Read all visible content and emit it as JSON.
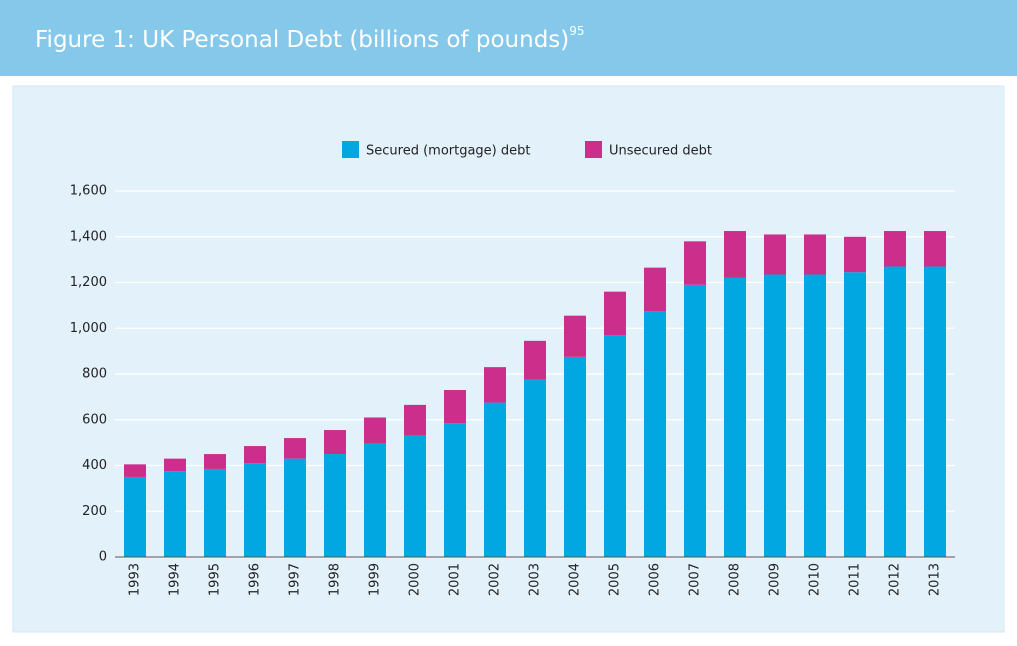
{
  "chart_data": {
    "type": "stacked_bar",
    "title": "Figure 1: UK Personal Debt (billions of pounds)",
    "title_superscript": "95",
    "categories": [
      "1993",
      "1994",
      "1995",
      "1996",
      "1997",
      "1998",
      "1999",
      "2000",
      "2001",
      "2002",
      "2003",
      "2004",
      "2005",
      "2006",
      "2007",
      "2008",
      "2009",
      "2010",
      "2011",
      "2012",
      "2013"
    ],
    "series": [
      {
        "name": "Secured (mortgage) debt",
        "color": "#00a7e1",
        "values": [
          350,
          375,
          385,
          410,
          430,
          450,
          495,
          530,
          585,
          675,
          775,
          875,
          970,
          1075,
          1190,
          1220,
          1235,
          1235,
          1245,
          1270,
          1270
        ]
      },
      {
        "name": "Unsecured debt",
        "color": "#cc2e8c",
        "values": [
          55,
          55,
          65,
          75,
          90,
          105,
          115,
          135,
          145,
          155,
          170,
          180,
          190,
          190,
          190,
          205,
          175,
          175,
          155,
          155,
          155
        ]
      }
    ],
    "ylim": [
      0,
      1600
    ],
    "yticks": [
      0,
      200,
      400,
      600,
      800,
      {
        "value": 1000,
        "label": "1,000"
      },
      {
        "value": 1200,
        "label": "1,200"
      },
      {
        "value": 1400,
        "label": "1,400"
      },
      {
        "value": 1600,
        "label": "1,600"
      }
    ],
    "grid": true,
    "legend": "top"
  }
}
